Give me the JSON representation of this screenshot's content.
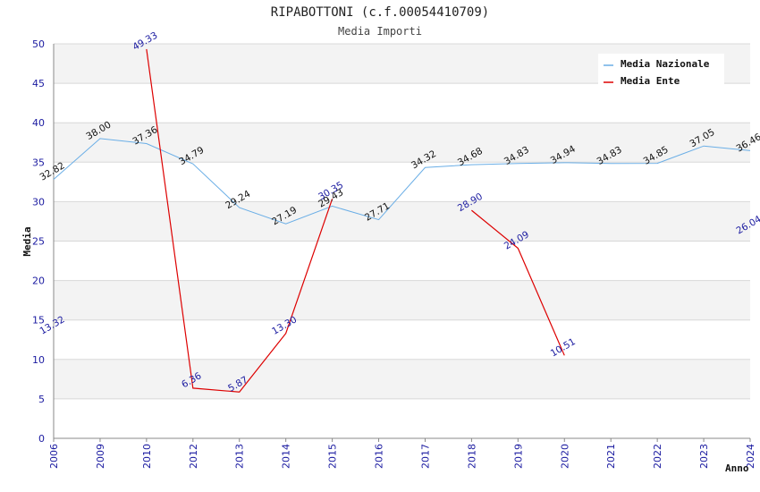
{
  "chart_data": {
    "type": "line",
    "title": "RIPABOTTONI (c.f.00054410709)",
    "subtitle": "Media Importi",
    "xlabel": "Anno",
    "ylabel": "Media",
    "ylim": [
      0,
      50
    ],
    "yticks": [
      "0",
      "5",
      "10",
      "15",
      "20",
      "25",
      "30",
      "35",
      "40",
      "45",
      "50"
    ],
    "categories": [
      "2006",
      "2009",
      "2010",
      "2012",
      "2013",
      "2014",
      "2015",
      "2016",
      "2017",
      "2018",
      "2019",
      "2020",
      "2021",
      "2022",
      "2023",
      "2024"
    ],
    "grid": true,
    "legend_position": "top-right",
    "series": [
      {
        "name": "Media Nazionale",
        "color": "#6aaee6",
        "values": [
          32.82,
          38.0,
          37.36,
          34.79,
          29.24,
          27.19,
          29.43,
          27.71,
          34.32,
          34.68,
          34.83,
          34.94,
          34.83,
          34.85,
          37.05,
          36.46
        ],
        "labels": [
          "32.82",
          "38.00",
          "37.36",
          "34.79",
          "29.24",
          "27.19",
          "29.43",
          "27.71",
          "34.32",
          "34.68",
          "34.83",
          "34.94",
          "34.83",
          "34.85",
          "37.05",
          "36.46"
        ]
      },
      {
        "name": "Media Ente",
        "color": "#dd0000",
        "values": [
          13.32,
          null,
          49.33,
          6.36,
          5.87,
          13.3,
          30.35,
          null,
          null,
          28.9,
          24.09,
          10.51,
          null,
          null,
          null,
          26.04
        ],
        "labels": [
          "13.32",
          null,
          "49.33",
          "6.36",
          "5.87",
          "13.30",
          "30.35",
          null,
          null,
          "28.90",
          "24.09",
          "10.51",
          null,
          null,
          null,
          "26.04"
        ]
      }
    ]
  }
}
